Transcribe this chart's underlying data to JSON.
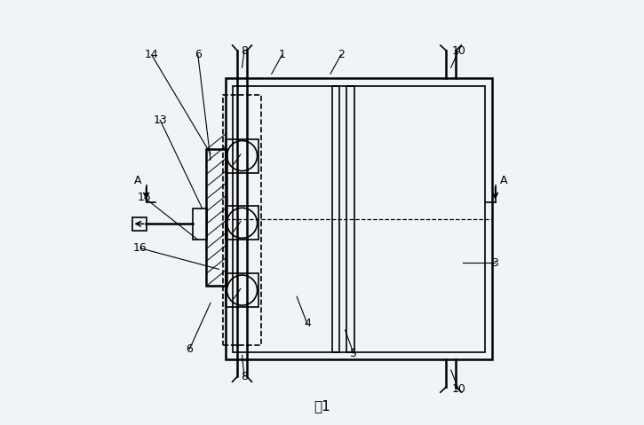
{
  "bg_color": "#f0f4f8",
  "line_color": "#000000",
  "title": "图1",
  "fig_width": 7.25,
  "fig_height": 4.79,
  "dpi": 100
}
